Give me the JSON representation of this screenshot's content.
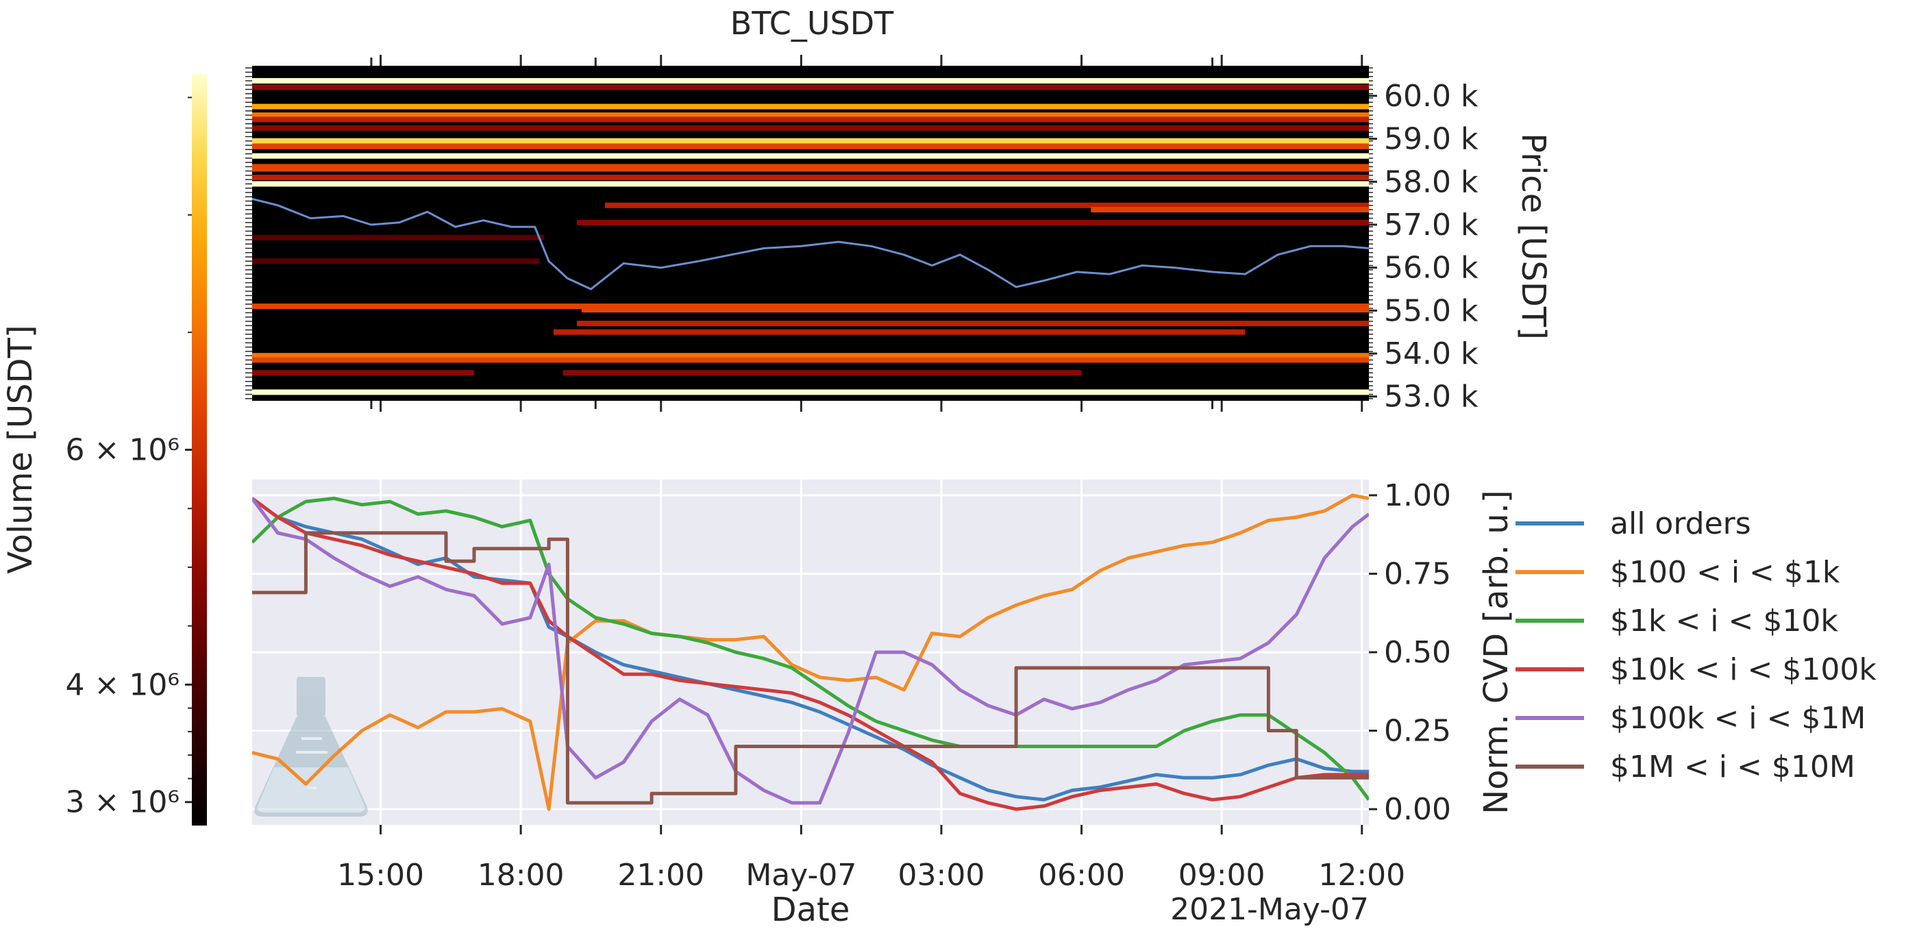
{
  "figure": {
    "title": "BTC_USDT",
    "x_label": "Date",
    "x_offset_label": "2021-May-07"
  },
  "colors": {
    "heatmap_cmap": [
      "#000000",
      "#2a0000",
      "#5a0000",
      "#8c0800",
      "#be2000",
      "#e24400",
      "#f57600",
      "#fca80a",
      "#fdd74a",
      "#ffffcc"
    ],
    "price_line": "#6a8fcf",
    "axes_background": "#eaeaf2",
    "grid": "#ffffff"
  },
  "chart_data": [
    {
      "type": "heatmap",
      "name": "order-book-heatmap",
      "x_ticks": [
        "15:00",
        "18:00",
        "21:00",
        "May-07",
        "03:00",
        "06:00",
        "09:00",
        "12:00"
      ],
      "x_range_hours": [
        12.25,
        36.15
      ],
      "ylabel": "Price [USDT]",
      "y_ticks": [
        "53.0 k",
        "54.0 k",
        "55.0 k",
        "56.0 k",
        "57.0 k",
        "58.0 k",
        "59.0 k",
        "60.0 k"
      ],
      "ylim": [
        52.9,
        60.7
      ],
      "colorbar": {
        "label": "Volume [USDT]",
        "ticks": [
          "3 × 10⁶",
          "4 × 10⁶",
          "6 × 10⁶"
        ],
        "tick_values": [
          3000000,
          4000000,
          6000000
        ],
        "range": [
          2800000,
          9200000
        ]
      },
      "levels": [
        {
          "price": 60.35,
          "start": 12.25,
          "end": 36.15,
          "level": 0.97
        },
        {
          "price": 60.2,
          "start": 12.25,
          "end": 36.15,
          "level": 0.3
        },
        {
          "price": 59.75,
          "start": 12.25,
          "end": 36.15,
          "level": 0.75
        },
        {
          "price": 59.55,
          "start": 12.25,
          "end": 36.15,
          "level": 0.7
        },
        {
          "price": 59.45,
          "start": 12.25,
          "end": 36.15,
          "level": 0.45
        },
        {
          "price": 59.25,
          "start": 12.25,
          "end": 36.15,
          "level": 0.3
        },
        {
          "price": 58.95,
          "start": 12.25,
          "end": 36.15,
          "level": 0.92
        },
        {
          "price": 58.82,
          "start": 12.25,
          "end": 36.15,
          "level": 0.6
        },
        {
          "price": 58.6,
          "start": 12.25,
          "end": 36.15,
          "level": 0.98
        },
        {
          "price": 58.35,
          "start": 12.25,
          "end": 36.15,
          "level": 0.55
        },
        {
          "price": 58.3,
          "start": 12.25,
          "end": 36.15,
          "level": 0.6
        },
        {
          "price": 58.1,
          "start": 12.25,
          "end": 36.15,
          "level": 0.4
        },
        {
          "price": 57.95,
          "start": 12.25,
          "end": 36.15,
          "level": 0.97
        },
        {
          "price": 57.45,
          "start": 19.8,
          "end": 36.15,
          "level": 0.45
        },
        {
          "price": 57.35,
          "start": 30.2,
          "end": 36.15,
          "level": 0.5
        },
        {
          "price": 57.05,
          "start": 19.2,
          "end": 36.15,
          "level": 0.35
        },
        {
          "price": 56.7,
          "start": 12.25,
          "end": 18.5,
          "level": 0.25
        },
        {
          "price": 56.15,
          "start": 12.25,
          "end": 18.4,
          "level": 0.25
        },
        {
          "price": 55.1,
          "start": 12.25,
          "end": 36.15,
          "level": 0.55
        },
        {
          "price": 55.02,
          "start": 19.3,
          "end": 36.15,
          "level": 0.6
        },
        {
          "price": 54.7,
          "start": 19.2,
          "end": 36.15,
          "level": 0.45
        },
        {
          "price": 54.5,
          "start": 18.7,
          "end": 33.5,
          "level": 0.4
        },
        {
          "price": 53.95,
          "start": 12.25,
          "end": 36.15,
          "level": 0.62
        },
        {
          "price": 53.85,
          "start": 12.25,
          "end": 36.15,
          "level": 0.5
        },
        {
          "price": 53.55,
          "start": 12.25,
          "end": 17.0,
          "level": 0.3
        },
        {
          "price": 53.55,
          "start": 18.9,
          "end": 30.0,
          "level": 0.35
        },
        {
          "price": 53.1,
          "start": 12.25,
          "end": 36.15,
          "level": 0.97
        }
      ],
      "price_series": {
        "t": [
          12.25,
          12.8,
          13.5,
          14.2,
          14.8,
          15.4,
          16.0,
          16.6,
          17.2,
          17.8,
          18.3,
          18.6,
          19.0,
          19.5,
          20.2,
          21.0,
          21.8,
          22.5,
          23.2,
          24.0,
          24.8,
          25.5,
          26.2,
          26.8,
          27.4,
          28.0,
          28.6,
          29.2,
          29.9,
          30.6,
          31.3,
          32.0,
          32.8,
          33.5,
          34.2,
          34.9,
          35.6,
          36.15
        ],
        "price": [
          57.6,
          57.45,
          57.15,
          57.2,
          57.0,
          57.05,
          57.3,
          56.95,
          57.1,
          56.95,
          56.95,
          56.15,
          55.75,
          55.5,
          56.1,
          56.0,
          56.15,
          56.3,
          56.45,
          56.5,
          56.6,
          56.5,
          56.3,
          56.05,
          56.3,
          55.95,
          55.55,
          55.7,
          55.9,
          55.85,
          56.05,
          56.0,
          55.9,
          55.85,
          56.3,
          56.5,
          56.5,
          56.45
        ]
      }
    },
    {
      "type": "line",
      "name": "normalized-cvd",
      "x_ticks": [
        "15:00",
        "18:00",
        "21:00",
        "May-07",
        "03:00",
        "06:00",
        "09:00",
        "12:00"
      ],
      "x_range_hours": [
        12.25,
        36.15
      ],
      "ylabel": "Norm. CVD [arb. u.]",
      "y_ticks": [
        "0.00",
        "0.25",
        "0.50",
        "0.75",
        "1.00"
      ],
      "ylim": [
        -0.05,
        1.05
      ],
      "grid": true,
      "legend": "right",
      "x": [
        12.25,
        12.8,
        13.4,
        14.0,
        14.6,
        15.2,
        15.8,
        16.4,
        17.0,
        17.6,
        18.2,
        18.6,
        19.0,
        19.6,
        20.2,
        20.8,
        21.4,
        22.0,
        22.6,
        23.2,
        23.8,
        24.4,
        25.0,
        25.6,
        26.2,
        26.8,
        27.4,
        28.0,
        28.6,
        29.2,
        29.8,
        30.4,
        31.0,
        31.6,
        32.2,
        32.8,
        33.4,
        34.0,
        34.6,
        35.2,
        35.8,
        36.15
      ],
      "series": [
        {
          "name": "all orders",
          "color": "#3f7fbf",
          "values": [
            0.99,
            0.93,
            0.9,
            0.88,
            0.86,
            0.82,
            0.78,
            0.8,
            0.74,
            0.73,
            0.72,
            0.58,
            0.55,
            0.5,
            0.46,
            0.44,
            0.42,
            0.4,
            0.38,
            0.36,
            0.34,
            0.31,
            0.27,
            0.23,
            0.19,
            0.14,
            0.1,
            0.06,
            0.04,
            0.03,
            0.06,
            0.07,
            0.09,
            0.11,
            0.1,
            0.1,
            0.11,
            0.14,
            0.16,
            0.13,
            0.12,
            0.12
          ]
        },
        {
          "name": "$100 < i < $1k",
          "color": "#f28c28",
          "values": [
            0.18,
            0.16,
            0.08,
            0.17,
            0.25,
            0.3,
            0.26,
            0.31,
            0.31,
            0.32,
            0.28,
            0.0,
            0.53,
            0.6,
            0.6,
            0.56,
            0.55,
            0.54,
            0.54,
            0.55,
            0.46,
            0.42,
            0.41,
            0.42,
            0.38,
            0.56,
            0.55,
            0.61,
            0.65,
            0.68,
            0.7,
            0.76,
            0.8,
            0.82,
            0.84,
            0.85,
            0.88,
            0.92,
            0.93,
            0.95,
            1.0,
            0.99
          ]
        },
        {
          "name": "$1k < i < $10k",
          "color": "#3ca83c",
          "values": [
            0.85,
            0.93,
            0.98,
            0.99,
            0.97,
            0.98,
            0.94,
            0.95,
            0.93,
            0.9,
            0.92,
            0.75,
            0.67,
            0.61,
            0.59,
            0.56,
            0.55,
            0.53,
            0.5,
            0.48,
            0.45,
            0.39,
            0.33,
            0.28,
            0.25,
            0.22,
            0.2,
            0.2,
            0.2,
            0.2,
            0.2,
            0.2,
            0.2,
            0.2,
            0.25,
            0.28,
            0.3,
            0.3,
            0.24,
            0.18,
            0.1,
            0.03
          ]
        },
        {
          "name": "$10k < i < $100k",
          "color": "#d03a3a",
          "values": [
            0.99,
            0.93,
            0.88,
            0.86,
            0.84,
            0.81,
            0.79,
            0.77,
            0.75,
            0.72,
            0.72,
            0.6,
            0.55,
            0.49,
            0.43,
            0.43,
            0.41,
            0.4,
            0.39,
            0.38,
            0.37,
            0.34,
            0.3,
            0.25,
            0.2,
            0.15,
            0.05,
            0.02,
            0.0,
            0.01,
            0.04,
            0.06,
            0.07,
            0.08,
            0.05,
            0.03,
            0.04,
            0.07,
            0.1,
            0.11,
            0.11,
            0.11
          ]
        },
        {
          "name": "$100k < i < $1M",
          "color": "#9d6fc9",
          "values": [
            0.99,
            0.88,
            0.86,
            0.8,
            0.75,
            0.71,
            0.74,
            0.7,
            0.68,
            0.59,
            0.61,
            0.78,
            0.2,
            0.1,
            0.15,
            0.28,
            0.35,
            0.3,
            0.12,
            0.06,
            0.02,
            0.02,
            0.24,
            0.5,
            0.5,
            0.46,
            0.38,
            0.33,
            0.3,
            0.35,
            0.32,
            0.34,
            0.38,
            0.41,
            0.46,
            0.47,
            0.48,
            0.53,
            0.62,
            0.8,
            0.9,
            0.94
          ]
        },
        {
          "name": "$1M < i < $10M",
          "color": "#8c564b",
          "values": [
            0.69,
            0.69,
            0.88,
            0.88,
            0.88,
            0.88,
            0.88,
            0.79,
            0.83,
            0.83,
            0.83,
            0.86,
            0.02,
            0.02,
            0.02,
            0.05,
            0.05,
            0.05,
            0.2,
            0.2,
            0.2,
            0.2,
            0.2,
            0.2,
            0.2,
            0.2,
            0.2,
            0.2,
            0.45,
            0.45,
            0.45,
            0.45,
            0.45,
            0.45,
            0.45,
            0.45,
            0.45,
            0.25,
            0.1,
            0.1,
            0.1,
            0.1
          ]
        }
      ]
    }
  ]
}
